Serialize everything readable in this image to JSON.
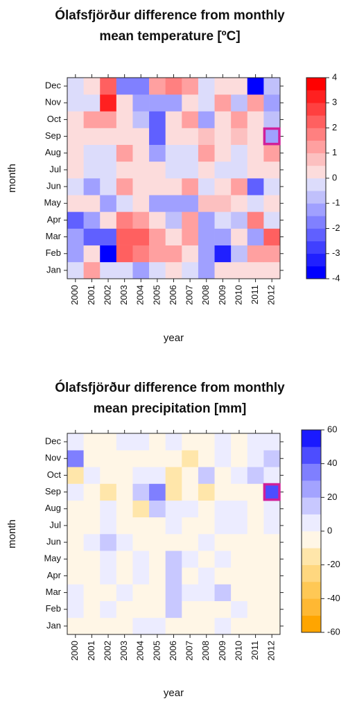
{
  "chart_data": [
    {
      "type": "heatmap",
      "title": "Ólafsfjörður difference from monthly mean temperature [ºC]",
      "xlabel": "year",
      "ylabel": "month",
      "x_categories": [
        "2000",
        "2001",
        "2002",
        "2003",
        "2004",
        "2005",
        "2006",
        "2007",
        "2008",
        "2009",
        "2010",
        "2011",
        "2012"
      ],
      "y_categories": [
        "Jan",
        "Feb",
        "Mar",
        "Apr",
        "May",
        "Jun",
        "Jul",
        "Aug",
        "Sep",
        "Oct",
        "Nov",
        "Dec"
      ],
      "values": [
        [
          -0.25,
          1.25,
          -0.25,
          -0.25,
          -1.25,
          -0.25,
          0.25,
          -0.25,
          -1.25,
          0.25,
          0.25,
          0.25,
          0.25
        ],
        [
          -1.25,
          0.25,
          -3.75,
          2.25,
          1.75,
          1.25,
          1.25,
          0.25,
          -1.25,
          -3.25,
          -0.75,
          1.25,
          1.25
        ],
        [
          -1.25,
          -2.25,
          -2.25,
          2.25,
          2.25,
          1.25,
          0.25,
          1.25,
          -1.25,
          -1.25,
          0.25,
          -1.25,
          2.25
        ],
        [
          -2.25,
          -1.25,
          0.25,
          1.75,
          1.25,
          0.25,
          -0.75,
          1.25,
          -1.25,
          -0.25,
          -0.75,
          1.75,
          -0.25
        ],
        [
          0.25,
          0.25,
          -1.25,
          -0.25,
          0.25,
          -1.25,
          -1.25,
          -1.25,
          0.75,
          0.75,
          0.25,
          -0.25,
          0.25
        ],
        [
          -0.25,
          -1.25,
          -0.25,
          1.25,
          0.25,
          0.25,
          0.25,
          1.25,
          -0.25,
          0.25,
          1.25,
          -2.25,
          -0.25
        ],
        [
          0.25,
          -0.25,
          -0.25,
          0.25,
          0.25,
          0.25,
          -0.25,
          -0.25,
          0.25,
          -0.25,
          -0.25,
          0.25,
          0.25
        ],
        [
          0.25,
          -0.25,
          -0.25,
          1.25,
          0.25,
          -1.25,
          -0.25,
          -0.25,
          1.25,
          0.25,
          -0.25,
          0.25,
          1.25
        ],
        [
          0.25,
          0.25,
          0.25,
          0.25,
          0.25,
          -2.25,
          0.25,
          0.25,
          0.75,
          0.25,
          0.75,
          0.25,
          -1.25
        ],
        [
          0.25,
          1.25,
          1.25,
          0.25,
          -0.75,
          -2.25,
          0.25,
          1.25,
          -1.25,
          0.25,
          1.25,
          0.25,
          -0.75
        ],
        [
          -0.25,
          -0.25,
          3.25,
          0.25,
          -1.25,
          -1.25,
          -1.25,
          0.25,
          -0.25,
          1.25,
          -0.75,
          1.25,
          -1.25
        ],
        [
          -0.25,
          0.25,
          2.25,
          -1.75,
          -1.75,
          1.25,
          1.75,
          1.25,
          -0.25,
          0.25,
          0.25,
          -3.75,
          -0.75
        ]
      ],
      "zlim": [
        -4,
        4
      ],
      "zticks": [
        -4,
        -3,
        -2,
        -1,
        0,
        1,
        2,
        3,
        4
      ],
      "colors": [
        "#0000ff",
        "#2020ff",
        "#4040ff",
        "#6060ff",
        "#8080ff",
        "#a0a0ff",
        "#c0c0fb",
        "#dcdcfb",
        "#fcdcdc",
        "#fcc0c0",
        "#ffa0a0",
        "#ff8080",
        "#ff6060",
        "#ff4040",
        "#ff2020",
        "#ff0000"
      ],
      "highlight": {
        "x": "2012",
        "y": "Sep",
        "color": "#d0209a"
      }
    },
    {
      "type": "heatmap",
      "title": "Ólafsfjörður difference from monthly mean precipitation [mm]",
      "xlabel": "year",
      "ylabel": "month",
      "x_categories": [
        "2000",
        "2001",
        "2002",
        "2003",
        "2004",
        "2005",
        "2006",
        "2007",
        "2008",
        "2009",
        "2010",
        "2011",
        "2012"
      ],
      "y_categories": [
        "Jan",
        "Feb",
        "Mar",
        "Apr",
        "May",
        "Jun",
        "Jul",
        "Aug",
        "Sep",
        "Oct",
        "Nov",
        "Dec"
      ],
      "values": [
        [
          -5,
          -5,
          -5,
          -5,
          5,
          5,
          -5,
          -5,
          -5,
          5,
          -5,
          -5,
          -5
        ],
        [
          5,
          -5,
          5,
          -5,
          -5,
          -5,
          15,
          -5,
          -5,
          -5,
          5,
          -5,
          -5
        ],
        [
          5,
          -5,
          -5,
          5,
          -5,
          -5,
          15,
          5,
          5,
          15,
          -5,
          -5,
          -5
        ],
        [
          -5,
          -5,
          5,
          -5,
          5,
          -5,
          15,
          -5,
          5,
          -5,
          -5,
          -5,
          -5
        ],
        [
          -5,
          -5,
          5,
          -5,
          5,
          -5,
          15,
          5,
          -5,
          5,
          -5,
          -5,
          -5
        ],
        [
          -5,
          5,
          15,
          5,
          -5,
          -5,
          -5,
          -5,
          5,
          -5,
          -5,
          -5,
          -5
        ],
        [
          -5,
          -5,
          5,
          -5,
          -5,
          -5,
          5,
          -5,
          -5,
          5,
          5,
          -5,
          5
        ],
        [
          -5,
          -5,
          5,
          -5,
          -15,
          15,
          5,
          5,
          -5,
          5,
          5,
          -5,
          5
        ],
        [
          5,
          -5,
          -15,
          -5,
          15,
          35,
          -15,
          -5,
          -15,
          -5,
          -5,
          -5,
          45
        ],
        [
          -15,
          5,
          -5,
          -5,
          5,
          5,
          -15,
          -5,
          15,
          -5,
          5,
          15,
          5
        ],
        [
          35,
          -5,
          -5,
          -5,
          -5,
          -5,
          -5,
          -15,
          -5,
          5,
          -5,
          5,
          15
        ],
        [
          5,
          -5,
          -5,
          5,
          5,
          -5,
          5,
          -5,
          -5,
          5,
          -5,
          5,
          5
        ]
      ],
      "zlim": [
        -60,
        60
      ],
      "zticks": [
        -60,
        -40,
        -20,
        0,
        20,
        40,
        60
      ],
      "colors": [
        "#ffa500",
        "#ffb833",
        "#ffc855",
        "#ffd77f",
        "#ffe6aa",
        "#fff6e6",
        "#ececff",
        "#c8c8ff",
        "#a3a3ff",
        "#7f7fff",
        "#4d4dff",
        "#1a1aff"
      ],
      "highlight": {
        "x": "2012",
        "y": "Sep",
        "color": "#d0209a"
      }
    }
  ]
}
